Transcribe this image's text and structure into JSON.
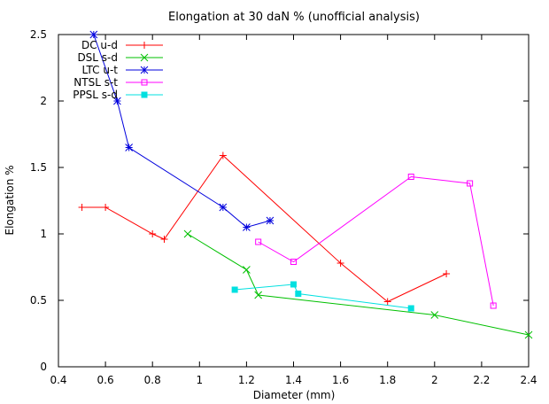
{
  "chart_data": {
    "type": "line",
    "title": "Elongation at 30 daN % (unofficial analysis)",
    "xlabel": "Diameter (mm)",
    "ylabel": "Elongation %",
    "xlim": [
      0.4,
      2.4
    ],
    "ylim": [
      0,
      2.5
    ],
    "xticks": [
      "0.4",
      "0.6",
      "0.8",
      "1",
      "1.2",
      "1.4",
      "1.6",
      "1.8",
      "2",
      "2.2",
      "2.4"
    ],
    "yticks": [
      "0",
      "0.5",
      "1",
      "1.5",
      "2",
      "2.5"
    ],
    "grid": false,
    "legend_position": "top-left",
    "series": [
      {
        "name": "DC u-d",
        "color": "#ff0000",
        "marker": "plus",
        "x": [
          0.5,
          0.6,
          0.8,
          0.85,
          1.1,
          1.6,
          1.8,
          2.05
        ],
        "y": [
          1.2,
          1.2,
          1.0,
          0.96,
          1.59,
          0.78,
          0.49,
          0.7
        ]
      },
      {
        "name": "DSL s-d",
        "color": "#00c000",
        "marker": "cross",
        "x": [
          0.95,
          1.2,
          1.25,
          2.0,
          2.4
        ],
        "y": [
          1.0,
          0.73,
          0.54,
          0.39,
          0.24
        ]
      },
      {
        "name": "LTC u-t",
        "color": "#0000dd",
        "marker": "star",
        "x": [
          0.55,
          0.65,
          0.7,
          1.1,
          1.2,
          1.3
        ],
        "y": [
          2.5,
          2.0,
          1.65,
          1.2,
          1.05,
          1.1
        ]
      },
      {
        "name": "NTSL s-t",
        "color": "#ff00ff",
        "marker": "open-square",
        "x": [
          1.25,
          1.4,
          1.9,
          2.15,
          2.25
        ],
        "y": [
          0.94,
          0.79,
          1.43,
          1.38,
          0.46
        ]
      },
      {
        "name": "PPSL s-d",
        "color": "#00e0e0",
        "marker": "filled-square",
        "x": [
          1.15,
          1.4,
          1.42,
          1.9
        ],
        "y": [
          0.58,
          0.62,
          0.55,
          0.44
        ]
      }
    ]
  }
}
